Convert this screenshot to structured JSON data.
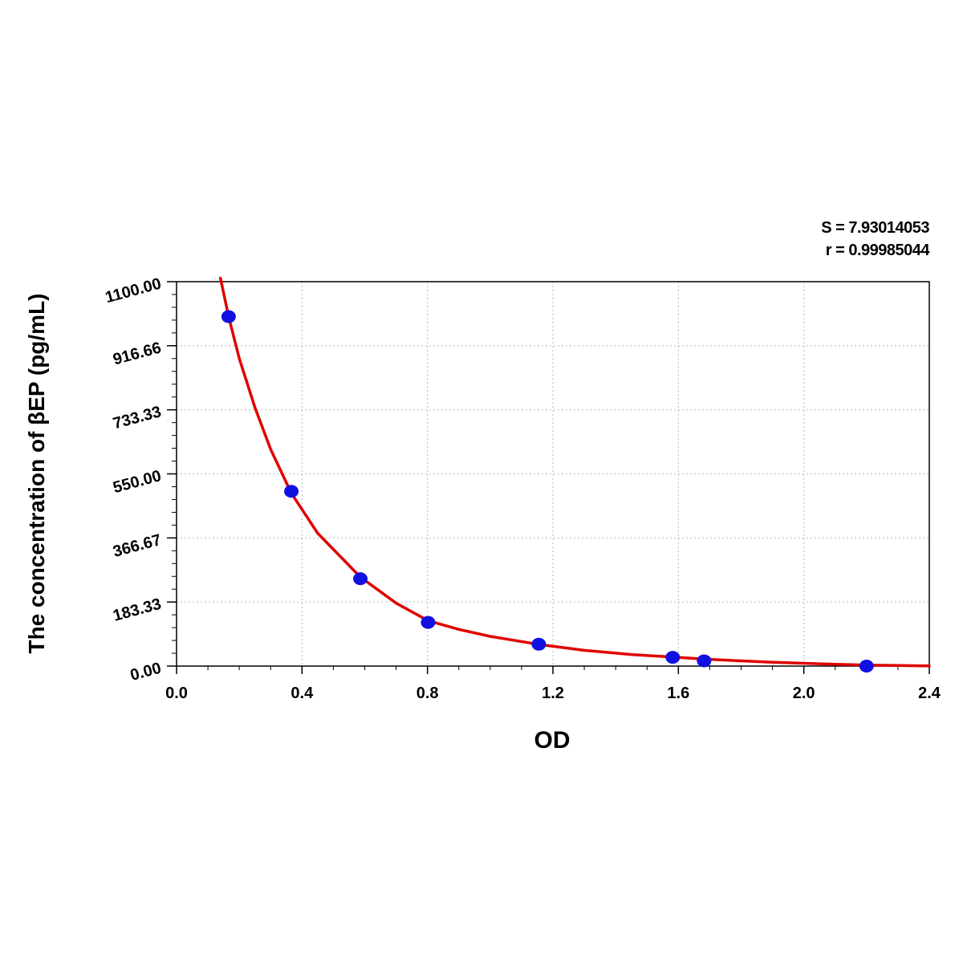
{
  "stats": {
    "s_label": "S = 7.93014053",
    "r_label": "r = 0.99985044"
  },
  "chart_data": {
    "type": "scatter",
    "title": "",
    "xlabel": "OD",
    "ylabel": "The concentration of βEP (pg/mL)",
    "xlim": [
      0.0,
      2.4
    ],
    "ylim": [
      0.0,
      1100.0
    ],
    "x_ticks": [
      "0.0",
      "0.4",
      "0.8",
      "1.2",
      "1.6",
      "2.0",
      "2.4"
    ],
    "y_ticks": [
      "0.00",
      "183.33",
      "366.67",
      "550.00",
      "733.33",
      "916.66",
      "1100.00"
    ],
    "grid": true,
    "series": [
      {
        "kind": "points",
        "color": "#1010e0",
        "x": [
          0.166,
          0.366,
          0.586,
          0.802,
          1.155,
          1.582,
          1.682,
          2.2
        ],
        "y": [
          1000.0,
          500.0,
          250.0,
          125.0,
          62.5,
          25.0,
          15.0,
          0.0
        ]
      },
      {
        "kind": "fit-curve",
        "color": "#e00000",
        "x": [
          0.14,
          0.166,
          0.2,
          0.25,
          0.3,
          0.366,
          0.45,
          0.586,
          0.7,
          0.802,
          0.9,
          1.0,
          1.155,
          1.3,
          1.45,
          1.582,
          1.682,
          1.8,
          1.9,
          2.0,
          2.1,
          2.2,
          2.3,
          2.4
        ],
        "y": [
          1110.0,
          1000.0,
          880.0,
          740.0,
          620.0,
          495.0,
          380.0,
          255.0,
          180.0,
          130.0,
          105.0,
          85.0,
          62.0,
          45.0,
          33.0,
          26.0,
          20.0,
          15.0,
          11.0,
          8.0,
          5.0,
          3.0,
          1.5,
          0.5
        ]
      }
    ]
  }
}
